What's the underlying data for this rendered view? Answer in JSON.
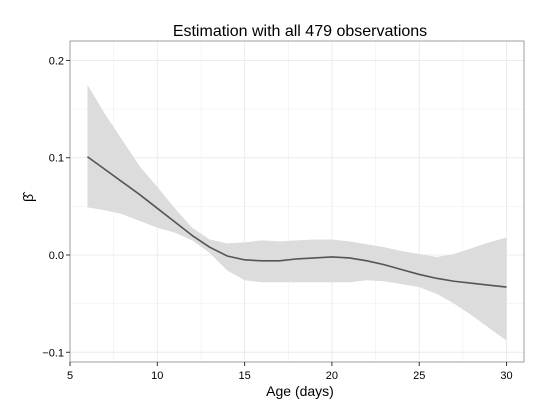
{
  "chart_data": {
    "type": "line",
    "title": "Estimation with all 479 observations",
    "xlabel": "Age (days)",
    "ylabel": "β̂",
    "xlim": [
      5,
      31
    ],
    "ylim": [
      -0.11,
      0.22
    ],
    "x_ticks": [
      5,
      10,
      15,
      20,
      25,
      30
    ],
    "y_ticks": [
      -0.1,
      0.0,
      0.1,
      0.2
    ],
    "x_tick_labels": [
      "5",
      "10",
      "15",
      "20",
      "25",
      "30"
    ],
    "y_tick_labels": [
      "−0.1",
      "0.0",
      "0.1",
      "0.2"
    ],
    "grid": true,
    "legend": "none",
    "colors": {
      "line": "#555555",
      "band": "#dcdcdc",
      "grid": "#ececec",
      "panel_border": "#888888"
    },
    "series": [
      {
        "x": [
          6,
          7,
          8,
          9,
          10,
          11,
          12,
          13,
          14,
          15,
          16,
          17,
          18,
          19,
          20,
          21,
          22,
          23,
          24,
          25,
          26,
          27,
          28,
          29,
          30
        ],
        "values": [
          0.101,
          0.088,
          0.075,
          0.062,
          0.048,
          0.034,
          0.02,
          0.008,
          -0.001,
          -0.005,
          -0.006,
          -0.006,
          -0.004,
          -0.003,
          -0.002,
          -0.003,
          -0.006,
          -0.01,
          -0.015,
          -0.02,
          -0.024,
          -0.027,
          -0.029,
          -0.031,
          -0.033
        ],
        "lower": [
          0.049,
          0.046,
          0.042,
          0.035,
          0.028,
          0.023,
          0.015,
          0.002,
          -0.016,
          -0.026,
          -0.028,
          -0.028,
          -0.028,
          -0.028,
          -0.028,
          -0.028,
          -0.026,
          -0.027,
          -0.03,
          -0.033,
          -0.04,
          -0.05,
          -0.062,
          -0.075,
          -0.088
        ],
        "upper": [
          0.175,
          0.145,
          0.118,
          0.091,
          0.07,
          0.048,
          0.028,
          0.016,
          0.012,
          0.013,
          0.015,
          0.014,
          0.015,
          0.016,
          0.016,
          0.014,
          0.011,
          0.008,
          0.004,
          0.001,
          -0.002,
          0.001,
          0.007,
          0.013,
          0.018
        ]
      }
    ]
  }
}
